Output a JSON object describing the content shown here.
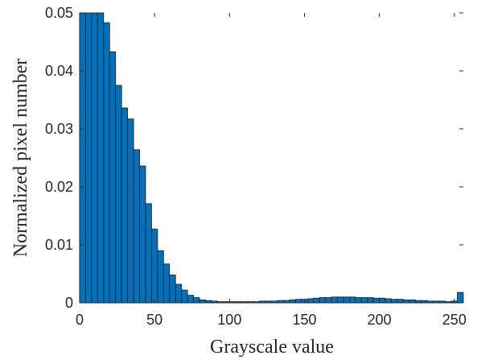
{
  "chart_data": {
    "type": "bar",
    "title": "",
    "xlabel": "Grayscale value",
    "ylabel": "Normalized pixel number",
    "xlim": [
      0,
      256
    ],
    "ylim": [
      0,
      0.05
    ],
    "xticks": [
      "0",
      "50",
      "100",
      "150",
      "200",
      "250"
    ],
    "yticks": [
      "0",
      "0.01",
      "0.02",
      "0.03",
      "0.04",
      "0.05"
    ],
    "grid": false,
    "legend": "none",
    "bin_width": 4,
    "bar_color": "#0072BD",
    "x": [
      2,
      6,
      10,
      14,
      18,
      22,
      26,
      30,
      34,
      38,
      42,
      46,
      50,
      54,
      58,
      62,
      66,
      70,
      74,
      78,
      82,
      86,
      90,
      94,
      98,
      102,
      106,
      110,
      114,
      118,
      122,
      126,
      130,
      134,
      138,
      142,
      146,
      150,
      154,
      158,
      162,
      166,
      170,
      174,
      178,
      182,
      186,
      190,
      194,
      198,
      202,
      206,
      210,
      214,
      218,
      222,
      226,
      230,
      234,
      238,
      242,
      246,
      250,
      254
    ],
    "values": [
      0.05,
      0.05,
      0.05,
      0.05,
      0.0483,
      0.0433,
      0.0375,
      0.0336,
      0.0317,
      0.0264,
      0.0236,
      0.0171,
      0.0127,
      0.009,
      0.0067,
      0.0048,
      0.0032,
      0.0022,
      0.0013,
      0.0009,
      0.0005,
      0.0004,
      0.0003,
      0.0002,
      0.0002,
      0.0002,
      0.0002,
      0.0002,
      0.0002,
      0.0002,
      0.0003,
      0.0003,
      0.0003,
      0.0004,
      0.0004,
      0.0005,
      0.0006,
      0.0006,
      0.0007,
      0.0008,
      0.0009,
      0.0009,
      0.001,
      0.001,
      0.001,
      0.001,
      0.0009,
      0.0009,
      0.0009,
      0.0008,
      0.0008,
      0.0007,
      0.0006,
      0.0006,
      0.0005,
      0.0005,
      0.0004,
      0.0004,
      0.0003,
      0.0003,
      0.0003,
      0.0002,
      0.0003,
      0.0018
    ]
  }
}
